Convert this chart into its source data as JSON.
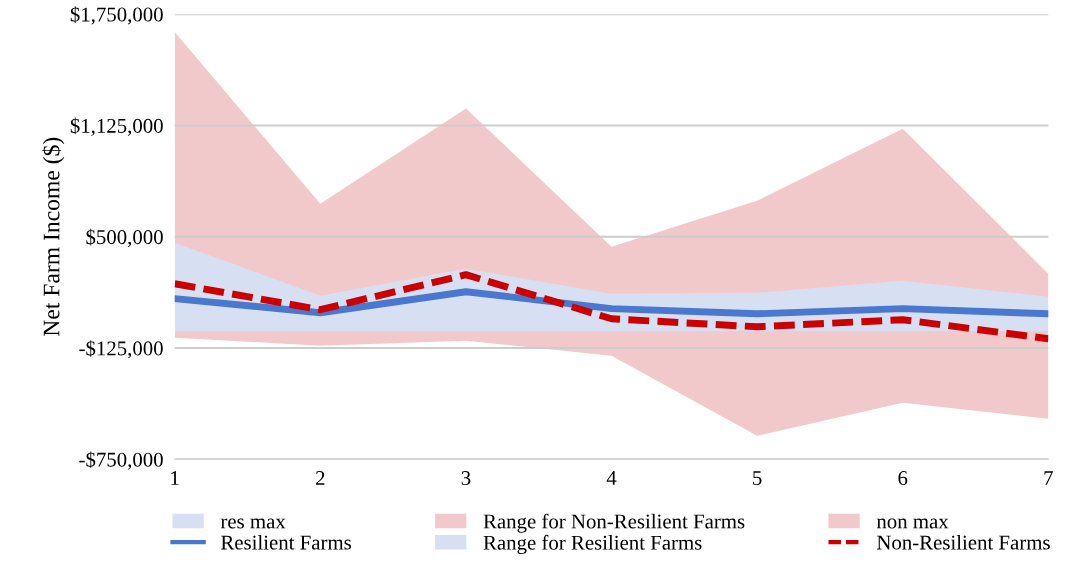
{
  "chart_data": {
    "type": "line",
    "ylabel": "Net Farm Income ($)",
    "x": [
      1,
      2,
      3,
      4,
      5,
      6,
      7
    ],
    "xlim": [
      1,
      7
    ],
    "xticks": [
      1,
      2,
      3,
      4,
      5,
      6,
      7
    ],
    "ylim": [
      -750000,
      1750000
    ],
    "yticks": [
      {
        "value": -750000,
        "label": "-$750,000"
      },
      {
        "value": -125000,
        "label": "-$125,000"
      },
      {
        "value": 500000,
        "label": "$500,000"
      },
      {
        "value": 1125000,
        "label": "$1,125,000"
      },
      {
        "value": 1750000,
        "label": "$1,750,000"
      }
    ],
    "grid": "y",
    "legend": "bottom",
    "series": [
      {
        "name": "non max",
        "type": "area",
        "color": "#f2c9cb",
        "values": [
          1650000,
          685000,
          1220000,
          444000,
          702000,
          1107000,
          292000
        ]
      },
      {
        "name": "Range for Non-Resilient Farms",
        "type": "area",
        "color": "#f2c9cb",
        "values": [
          -67000,
          -112000,
          -84000,
          -169000,
          -618000,
          -433000,
          -522000
        ]
      },
      {
        "name": "res max",
        "type": "area",
        "color": "#d7e0f2",
        "values": [
          466000,
          169000,
          320000,
          180000,
          185000,
          253000,
          163000
        ]
      },
      {
        "name": "Range for Resilient Farms",
        "type": "area",
        "color": "#d7e0f2",
        "values": [
          -30000,
          -30000,
          -30000,
          -30000,
          -30000,
          -30000,
          -30000
        ]
      },
      {
        "name": "Resilient Farms",
        "color": "#4a78cf",
        "line_style": "solid",
        "values": [
          152000,
          73000,
          191000,
          96000,
          67000,
          96000,
          67000
        ]
      },
      {
        "name": "Non-Resilient Farms",
        "color": "#cc0000",
        "line_style": "dashed",
        "values": [
          236000,
          90000,
          287000,
          39000,
          -6000,
          34000,
          -73000
        ]
      }
    ]
  }
}
